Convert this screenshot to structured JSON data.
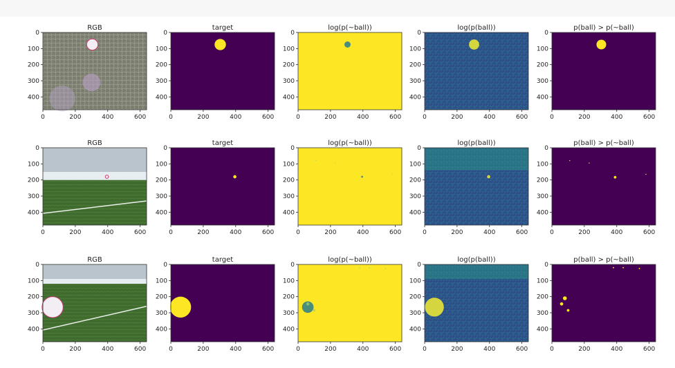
{
  "chart_data": {
    "type": "heatmap",
    "grid": {
      "rows": 3,
      "cols": 5
    },
    "image_size": {
      "width": 640,
      "height": 480
    },
    "xticks": [
      0,
      200,
      400,
      600
    ],
    "yticks": [
      0,
      100,
      200,
      300,
      400
    ],
    "colormap": {
      "low": "#440154",
      "mid": "#21918c",
      "high": "#fde725"
    },
    "columns": [
      "RGB",
      "target",
      "log(p(~ball))",
      "log(p(ball))",
      "p(ball) > p(~ball)"
    ],
    "rows": [
      {
        "scene": "grass field close-up",
        "ball": {
          "cx": 305,
          "cy": 75,
          "r": 35
        },
        "predicted_blobs": [
          {
            "cx": 305,
            "cy": 75,
            "r": 30
          }
        ]
      },
      {
        "scene": "indoor pitch wide view",
        "ball": {
          "cx": 395,
          "cy": 180,
          "r": 10
        },
        "predicted_blobs": [
          {
            "cx": 390,
            "cy": 183,
            "r": 8
          },
          {
            "cx": 110,
            "cy": 80,
            "r": 3
          },
          {
            "cx": 230,
            "cy": 95,
            "r": 3
          },
          {
            "cx": 580,
            "cy": 165,
            "r": 3
          }
        ]
      },
      {
        "scene": "indoor pitch with ball at left edge",
        "ball": {
          "cx": 60,
          "cy": 265,
          "r": 65
        },
        "predicted_blobs": [
          {
            "cx": 80,
            "cy": 210,
            "r": 12
          },
          {
            "cx": 60,
            "cy": 245,
            "r": 10
          },
          {
            "cx": 100,
            "cy": 285,
            "r": 8
          },
          {
            "cx": 380,
            "cy": 20,
            "r": 4
          },
          {
            "cx": 440,
            "cy": 20,
            "r": 4
          },
          {
            "cx": 540,
            "cy": 25,
            "r": 4
          }
        ]
      }
    ]
  }
}
